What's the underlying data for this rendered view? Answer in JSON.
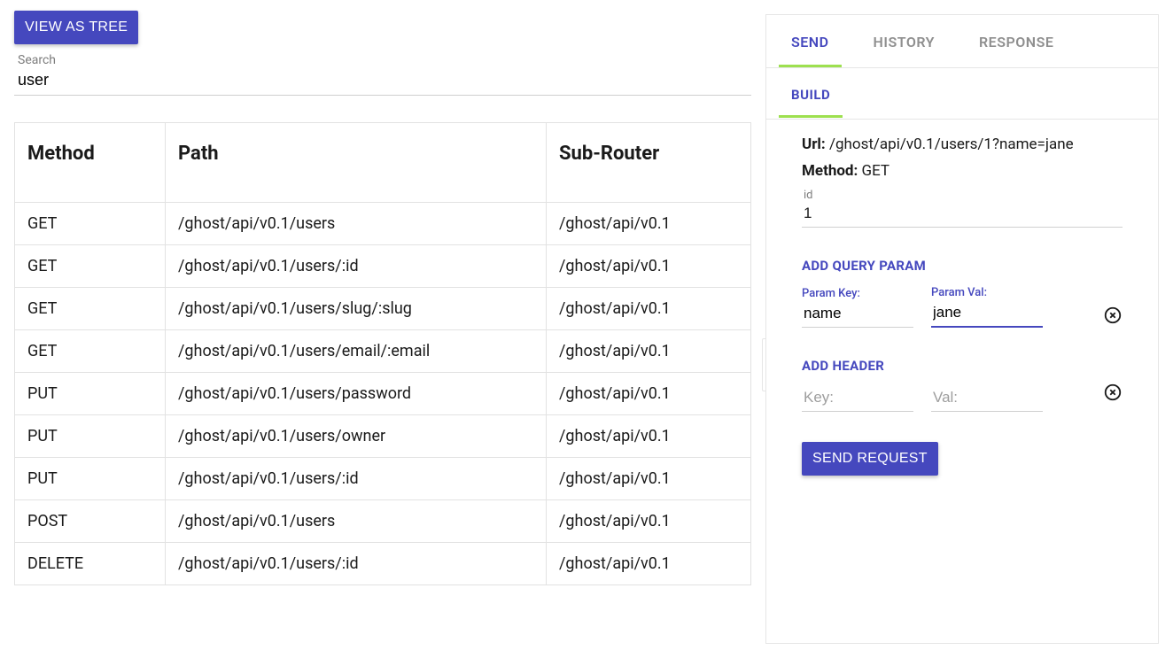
{
  "toolbar": {
    "view_as_tree_label": "VIEW AS TREE",
    "search_label": "Search",
    "search_value": "user"
  },
  "routes_table": {
    "columns": [
      "Method",
      "Path",
      "Sub-Router"
    ],
    "rows": [
      [
        "GET",
        "/ghost/api/v0.1/users",
        "/ghost/api/v0.1"
      ],
      [
        "GET",
        "/ghost/api/v0.1/users/:id",
        "/ghost/api/v0.1"
      ],
      [
        "GET",
        "/ghost/api/v0.1/users/slug/:slug",
        "/ghost/api/v0.1"
      ],
      [
        "GET",
        "/ghost/api/v0.1/users/email/:email",
        "/ghost/api/v0.1"
      ],
      [
        "PUT",
        "/ghost/api/v0.1/users/password",
        "/ghost/api/v0.1"
      ],
      [
        "PUT",
        "/ghost/api/v0.1/users/owner",
        "/ghost/api/v0.1"
      ],
      [
        "PUT",
        "/ghost/api/v0.1/users/:id",
        "/ghost/api/v0.1"
      ],
      [
        "POST",
        "/ghost/api/v0.1/users",
        "/ghost/api/v0.1"
      ],
      [
        "DELETE",
        "/ghost/api/v0.1/users/:id",
        "/ghost/api/v0.1"
      ]
    ]
  },
  "right": {
    "tabs": {
      "send": "SEND",
      "history": "HISTORY",
      "response": "RESPONSE"
    },
    "subtabs": {
      "build": "BUILD"
    },
    "url_label": "Url:",
    "url_value": "/ghost/api/v0.1/users/1?name=jane",
    "method_label": "Method:",
    "method_value": "GET",
    "path_param": {
      "label": "id",
      "value": "1"
    },
    "add_query_param_heading": "ADD QUERY PARAM",
    "query_param": {
      "key_label": "Param Key:",
      "key_value": "name",
      "val_label": "Param Val:",
      "val_value": "jane"
    },
    "add_header_heading": "ADD HEADER",
    "header_param": {
      "key_placeholder": "Key:",
      "key_value": "",
      "val_placeholder": "Val:",
      "val_value": ""
    },
    "send_request_label": "SEND REQUEST"
  },
  "colors": {
    "primary": "#4548be",
    "accent_underline": "#9de04f",
    "muted_text": "#8f8f8f",
    "border": "#e6e6e6"
  }
}
